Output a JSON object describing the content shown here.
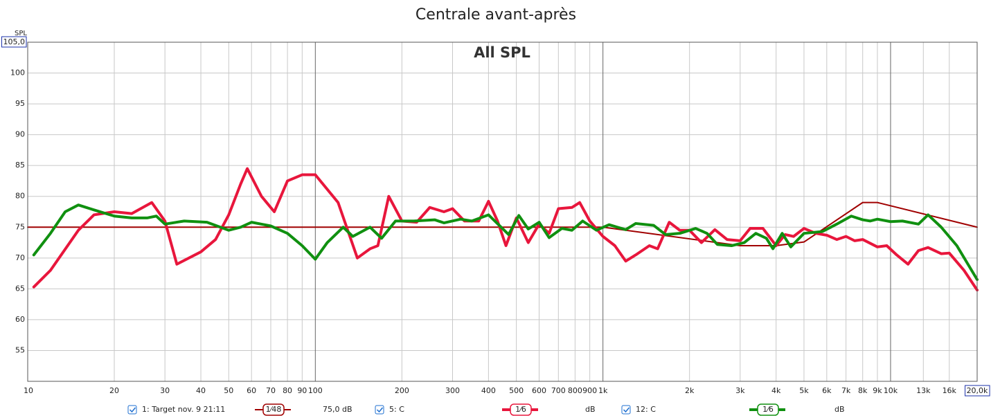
{
  "chart_data": {
    "type": "line",
    "title": "Centrale avant-après",
    "annotation": "All SPL",
    "y_label": "SPL",
    "xscale": "log",
    "grid": true,
    "xlim": [
      10,
      20000
    ],
    "ylim": [
      50,
      105
    ],
    "yticks": [
      55,
      60,
      65,
      70,
      75,
      80,
      85,
      90,
      95,
      100,
      {
        "value": 105,
        "label": "105,0"
      }
    ],
    "xticks": [
      10,
      20,
      30,
      40,
      50,
      60,
      70,
      80,
      90,
      100,
      200,
      300,
      400,
      500,
      600,
      700,
      800,
      900,
      {
        "value": 1000,
        "label": "1k"
      },
      {
        "value": 2000,
        "label": "2k"
      },
      {
        "value": 3000,
        "label": "3k"
      },
      {
        "value": 4000,
        "label": "4k"
      },
      {
        "value": 5000,
        "label": "5k"
      },
      {
        "value": 6000,
        "label": "6k"
      },
      {
        "value": 7000,
        "label": "7k"
      },
      {
        "value": 8000,
        "label": "8k"
      },
      {
        "value": 9000,
        "label": "9k"
      },
      {
        "value": 10000,
        "label": "10k"
      },
      {
        "value": 13000,
        "label": "13k"
      },
      {
        "value": 16000,
        "label": "16k"
      },
      {
        "value": 20000,
        "label": "20,0k"
      }
    ],
    "series": [
      {
        "name": "1: Target nov. 9 21:11",
        "color": "#a00000",
        "width": 2,
        "smoothing": "1⁄48",
        "level": "75,0 dB",
        "x": [
          10,
          1000,
          3000,
          4000,
          5000,
          8000,
          9000,
          20000
        ],
        "values": [
          75,
          75,
          72,
          72,
          72.6,
          79,
          79,
          75
        ]
      },
      {
        "name": "5: C",
        "color": "#e8163c",
        "width": 4,
        "smoothing": "1⁄6",
        "level": "dB",
        "x": [
          10.5,
          12,
          15,
          17,
          20,
          23,
          27,
          30,
          33,
          40,
          45,
          50,
          55,
          58,
          65,
          72,
          80,
          90,
          100,
          120,
          140,
          155,
          165,
          180,
          200,
          225,
          250,
          280,
          300,
          330,
          370,
          400,
          430,
          460,
          500,
          550,
          600,
          650,
          700,
          780,
          830,
          900,
          1000,
          1100,
          1200,
          1300,
          1450,
          1550,
          1700,
          1850,
          2000,
          2200,
          2450,
          2700,
          3000,
          3250,
          3600,
          4000,
          4300,
          4600,
          5000,
          5500,
          6000,
          6500,
          7000,
          7500,
          8000,
          9000,
          9700,
          10500,
          11500,
          12500,
          13500,
          15000,
          16000,
          18000,
          20000
        ],
        "values": [
          65.3,
          68,
          74.5,
          77,
          77.5,
          77.2,
          79,
          76,
          69,
          71,
          73,
          77,
          82,
          84.5,
          80,
          77.5,
          82.5,
          83.5,
          83.5,
          79,
          70,
          71.5,
          72,
          80,
          76,
          75.8,
          78.2,
          77.5,
          78,
          76,
          76,
          79.2,
          76,
          72,
          76.5,
          72.5,
          75.5,
          74,
          78,
          78.2,
          79,
          76,
          73.5,
          72,
          69.5,
          70.5,
          72,
          71.5,
          75.8,
          74.5,
          74.5,
          72.5,
          74.6,
          73,
          72.8,
          74.8,
          74.8,
          72,
          73.8,
          73.5,
          74.8,
          74,
          73.7,
          73,
          73.5,
          72.8,
          73,
          71.8,
          72,
          70.5,
          69,
          71.2,
          71.7,
          70.7,
          70.8,
          68,
          64.8
        ]
      },
      {
        "name": "12: C",
        "color": "#109010",
        "width": 4,
        "smoothing": "1⁄6",
        "level": "dB",
        "x": [
          10.5,
          12,
          13.5,
          15,
          17,
          20,
          23,
          26,
          28,
          30,
          35,
          42,
          50,
          55,
          60,
          70,
          80,
          90,
          100,
          110,
          125,
          135,
          155,
          170,
          190,
          220,
          260,
          280,
          320,
          350,
          400,
          470,
          510,
          550,
          600,
          650,
          720,
          780,
          850,
          950,
          1050,
          1200,
          1300,
          1500,
          1650,
          1850,
          2100,
          2300,
          2500,
          2800,
          3100,
          3400,
          3700,
          3900,
          4200,
          4500,
          5000,
          5800,
          6500,
          7300,
          8000,
          8500,
          9000,
          10000,
          11000,
          12500,
          13500,
          15000,
          17000,
          20000
        ],
        "values": [
          70.5,
          74,
          77.5,
          78.6,
          77.8,
          76.8,
          76.5,
          76.5,
          76.8,
          75.5,
          76,
          75.8,
          74.5,
          75,
          75.8,
          75.2,
          74,
          72,
          69.8,
          72.5,
          75,
          73.5,
          75,
          73.2,
          76,
          76,
          76.2,
          75.7,
          76.3,
          76,
          77,
          73.8,
          76.9,
          74.7,
          75.8,
          73.3,
          74.8,
          74.5,
          76,
          74.5,
          75.4,
          74.6,
          75.6,
          75.3,
          73.8,
          74,
          74.8,
          74,
          72.2,
          72,
          72.5,
          74,
          73.2,
          71.5,
          74,
          71.8,
          74,
          74.3,
          75.5,
          76.8,
          76.2,
          76,
          76.3,
          75.9,
          76,
          75.5,
          77,
          75,
          72,
          66.5
        ]
      }
    ]
  }
}
